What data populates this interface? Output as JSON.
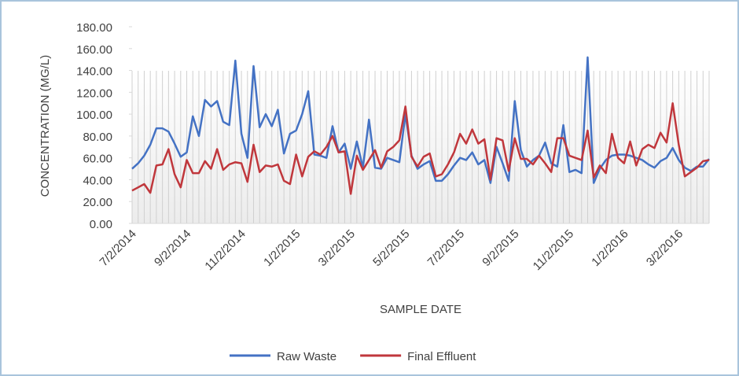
{
  "chart_data": {
    "type": "line",
    "categories": [
      "7/2/2014",
      null,
      null,
      null,
      null,
      null,
      null,
      null,
      null,
      "9/2/2014",
      null,
      null,
      null,
      null,
      null,
      null,
      null,
      null,
      "11/2/2014",
      null,
      null,
      null,
      null,
      null,
      null,
      null,
      null,
      "1/2/2015",
      null,
      null,
      null,
      null,
      null,
      null,
      null,
      null,
      "3/2/2015",
      null,
      null,
      null,
      null,
      null,
      null,
      null,
      null,
      "5/2/2015",
      null,
      null,
      null,
      null,
      null,
      null,
      null,
      null,
      "7/2/2015",
      null,
      null,
      null,
      null,
      null,
      null,
      null,
      null,
      "9/2/2015",
      null,
      null,
      null,
      null,
      null,
      null,
      null,
      null,
      "11/2/2015",
      null,
      null,
      null,
      null,
      null,
      null,
      null,
      null,
      "1/2/2016",
      null,
      null,
      null,
      null,
      null,
      null,
      null,
      null,
      "3/2/2016",
      null,
      null,
      null,
      null,
      null
    ],
    "series": [
      {
        "name": "Raw Waste",
        "color": "#4472c4",
        "values": [
          50,
          55,
          62,
          72,
          87,
          87,
          84,
          73,
          61,
          65,
          98,
          80,
          113,
          107,
          112,
          93,
          90,
          149,
          82,
          60,
          144,
          88,
          100,
          89,
          104,
          64,
          82,
          85,
          100,
          121,
          63,
          62,
          60,
          89,
          65,
          73,
          50,
          75,
          51,
          95,
          51,
          50,
          60,
          58,
          56,
          100,
          62,
          50,
          54,
          57,
          39,
          39,
          45,
          53,
          60,
          58,
          65,
          54,
          58,
          37,
          70,
          55,
          39,
          112,
          67,
          52,
          58,
          62,
          74,
          55,
          52,
          90,
          47,
          49,
          46,
          152,
          37,
          50,
          58,
          62,
          63,
          63,
          62,
          60,
          58,
          54,
          51,
          57,
          60,
          69,
          58,
          51,
          48,
          52,
          52,
          59
        ]
      },
      {
        "name": "Final Effluent",
        "color": "#c0373c",
        "values": [
          30,
          33,
          36,
          28,
          53,
          54,
          68,
          45,
          33,
          58,
          46,
          46,
          57,
          50,
          68,
          49,
          54,
          56,
          55,
          38,
          72,
          47,
          53,
          52,
          54,
          39,
          36,
          63,
          43,
          61,
          66,
          63,
          70,
          80,
          65,
          66,
          27,
          62,
          49,
          58,
          67,
          51,
          66,
          70,
          76,
          107,
          61,
          52,
          61,
          64,
          43,
          45,
          54,
          65,
          82,
          73,
          86,
          73,
          77,
          40,
          78,
          76,
          48,
          78,
          59,
          59,
          54,
          62,
          55,
          47,
          78,
          78,
          62,
          60,
          58,
          85,
          42,
          53,
          46,
          82,
          60,
          55,
          75,
          53,
          68,
          72,
          69,
          83,
          74,
          110,
          72,
          43,
          47,
          51,
          57,
          58
        ]
      }
    ],
    "ylim": [
      0,
      180
    ],
    "yticks": [
      {
        "value": 0,
        "label": "0.00"
      },
      {
        "value": 20,
        "label": "20.00"
      },
      {
        "value": 40,
        "label": "40.00"
      },
      {
        "value": 60,
        "label": "60.00"
      },
      {
        "value": 80,
        "label": "80.00"
      },
      {
        "value": 100,
        "label": "100.00"
      },
      {
        "value": 120,
        "label": "120.00"
      },
      {
        "value": 140,
        "label": "140.00"
      },
      {
        "value": 160,
        "label": "160.00"
      },
      {
        "value": 180,
        "label": "180.00"
      }
    ],
    "x_label": "SAMPLE DATE",
    "y_label": "CONCENTRATION (MG/L)",
    "legend": "bottom"
  }
}
